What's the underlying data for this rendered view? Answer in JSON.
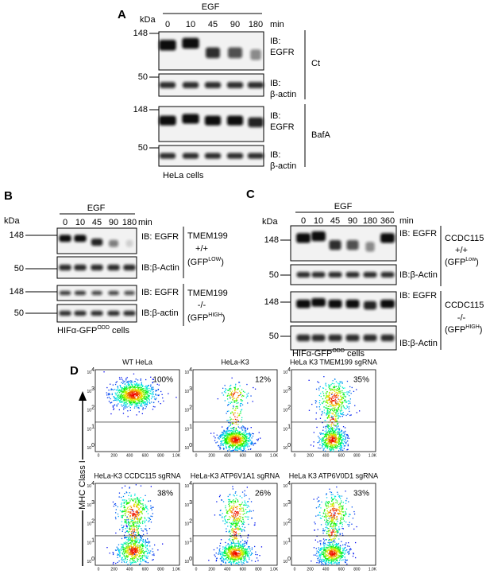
{
  "panel_a": {
    "label": "A",
    "kda": "kDa",
    "treatment": "EGF",
    "times": [
      "0",
      "10",
      "45",
      "90",
      "180"
    ],
    "unit": "min",
    "blots": [
      {
        "marker": "148",
        "ib": [
          "IB:",
          "EGFR"
        ]
      },
      {
        "marker": "50",
        "ib": [
          "IB:",
          "β-actin"
        ]
      },
      {
        "marker": "148",
        "ib": [
          "IB:",
          "EGFR"
        ]
      },
      {
        "marker": "50",
        "ib": [
          "IB:",
          "β-actin"
        ]
      }
    ],
    "conditions": [
      "Ct",
      "BafA"
    ],
    "cells": "HeLa cells"
  },
  "panel_b": {
    "label": "B",
    "kda": "kDa",
    "treatment": "EGF",
    "times": [
      "0",
      "10",
      "45",
      "90",
      "180"
    ],
    "unit": "min",
    "blots": [
      {
        "marker": "148",
        "ib": "IB: EGFR"
      },
      {
        "marker": "50",
        "ib": "IB:β-Actin"
      },
      {
        "marker": "148",
        "ib": "IB: EGFR"
      },
      {
        "marker": "50",
        "ib": "IB:β-actin"
      }
    ],
    "conditions": [
      {
        "gene": "TMEM199",
        "genotype": "+/+",
        "reporter": {
          "open": "(GFP",
          "sup": "LOW",
          "close": ")"
        }
      },
      {
        "gene": "TMEM199",
        "genotype": "-/-",
        "reporter": {
          "open": "(GFP",
          "sup": "HIGH",
          "close": ")"
        }
      }
    ],
    "cells": {
      "pre": "HIFα-GFP",
      "sup": "ODD",
      "post": " cells"
    }
  },
  "panel_c": {
    "label": "C",
    "kda": "kDa",
    "treatment": "EGF",
    "times": [
      "0",
      "10",
      "45",
      "90",
      "180",
      "360"
    ],
    "unit": "min",
    "blots": [
      {
        "marker": "148",
        "ib": "IB: EGFR"
      },
      {
        "marker": "50",
        "ib": "IB:β-Actin"
      },
      {
        "marker": "148",
        "ib": "IB: EGFR"
      },
      {
        "marker": "50",
        "ib": "IB:β-Actin"
      }
    ],
    "conditions": [
      {
        "gene": "CCDC115",
        "genotype": "+/+",
        "reporter": {
          "open": "(GFP",
          "sup": "Low",
          "close": ")"
        }
      },
      {
        "gene": "CCDC115",
        "genotype": "-/-",
        "reporter": {
          "open": "(GFP",
          "sup": "HIGH",
          "close": ")"
        }
      }
    ],
    "cells": {
      "pre": "HIFα-GFP",
      "sup": "ODD",
      "post": " cells"
    }
  },
  "panel_d": {
    "label": "D",
    "y_axis_label": "MHC Class I",
    "yticks": [
      {
        "base": "10",
        "sup": "0"
      },
      {
        "base": "10",
        "sup": "1"
      },
      {
        "base": "10",
        "sup": "2"
      },
      {
        "base": "10",
        "sup": "3"
      },
      {
        "base": "10",
        "sup": "4"
      }
    ],
    "xticks": [
      "0",
      "200",
      "400",
      "600",
      "800",
      "1.0K"
    ],
    "plots": [
      {
        "title": "WT HeLa",
        "percent": "100%"
      },
      {
        "title": "HeLa-K3",
        "percent": "12%"
      },
      {
        "title": "HeLa K3  TMEM199 sgRNA",
        "percent": "35%"
      },
      {
        "title": "HeLa-K3 CCDC115 sgRNA",
        "percent": "38%"
      },
      {
        "title": "HeLa-K3 ATP6V1A1 sgRNA",
        "percent": "26%"
      },
      {
        "title": "HeLa K3 ATP6V0D1 sgRNA",
        "percent": "33%"
      }
    ]
  }
}
